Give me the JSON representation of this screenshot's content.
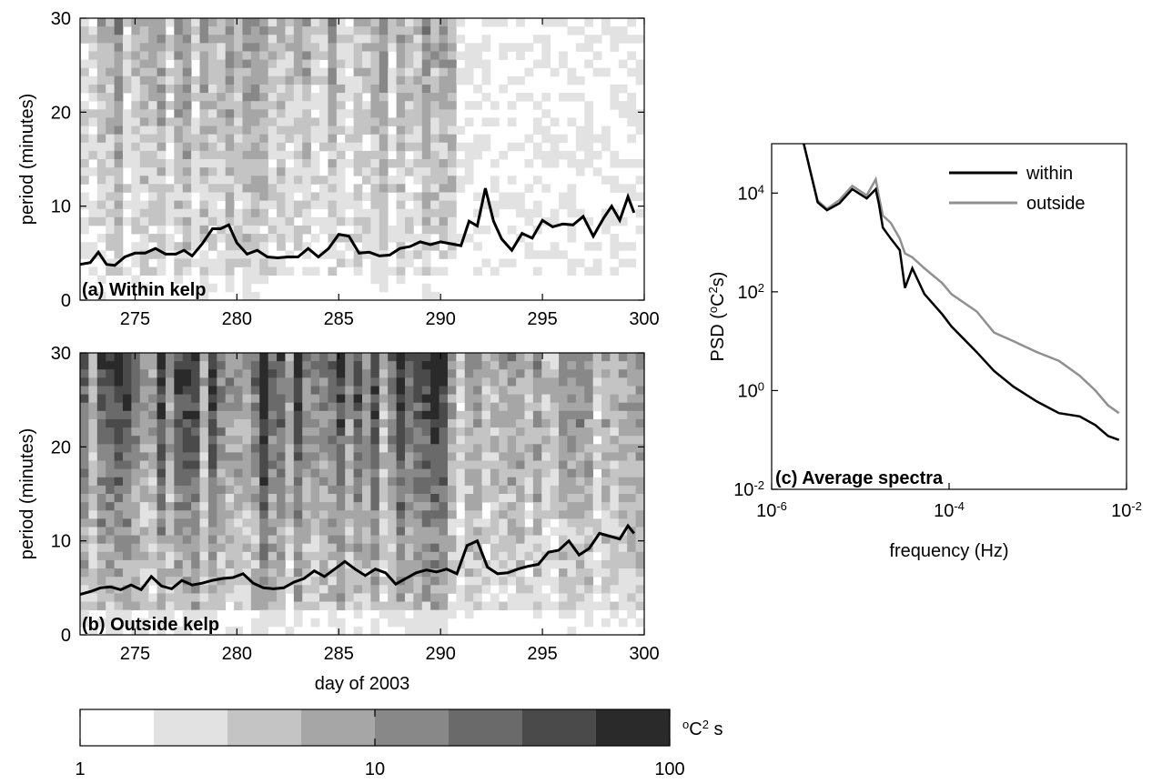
{
  "chart_data": [
    {
      "id": "a",
      "type": "heatmap",
      "panel_label": "(a) Within kelp",
      "ylabel": "period (minutes)",
      "xlim": [
        272.3,
        300
      ],
      "ylim": [
        0,
        30
      ],
      "xticks": [
        275,
        280,
        285,
        290,
        295,
        300
      ],
      "yticks": [
        0,
        10,
        20,
        30
      ],
      "color_scale": "log",
      "color_range": [
        1,
        100
      ],
      "line": {
        "x": [
          272.3,
          272.8,
          273.2,
          273.6,
          274.0,
          274.5,
          275.0,
          275.5,
          276.0,
          276.5,
          277.0,
          277.4,
          277.8,
          278.3,
          278.8,
          279.2,
          279.6,
          280.0,
          280.5,
          281.0,
          281.5,
          282.0,
          282.5,
          283.0,
          283.5,
          284.0,
          284.5,
          285.0,
          285.5,
          286.0,
          286.5,
          287.0,
          287.5,
          288.0,
          288.5,
          289.0,
          289.5,
          290.0,
          290.5,
          291.0,
          291.4,
          291.8,
          292.2,
          292.6,
          293.0,
          293.5,
          294.0,
          294.5,
          295.0,
          295.5,
          296.0,
          296.5,
          297.0,
          297.5,
          298.0,
          298.4,
          298.8,
          299.2,
          299.5
        ],
        "y": [
          3.8,
          4.0,
          5.1,
          3.8,
          3.7,
          4.6,
          5.0,
          5.0,
          5.5,
          4.9,
          4.9,
          5.3,
          4.7,
          6.0,
          7.6,
          7.6,
          8.0,
          6.1,
          4.9,
          5.3,
          4.6,
          4.5,
          4.6,
          4.6,
          5.5,
          4.6,
          5.5,
          7.0,
          6.8,
          5.0,
          5.1,
          4.7,
          4.8,
          5.5,
          5.7,
          6.2,
          5.9,
          6.2,
          6.0,
          5.8,
          8.4,
          7.9,
          11.9,
          8.4,
          6.5,
          5.3,
          7.1,
          6.6,
          8.5,
          7.8,
          8.1,
          8.0,
          8.9,
          6.8,
          8.7,
          10.0,
          8.5,
          11.0,
          9.3
        ]
      }
    },
    {
      "id": "b",
      "type": "heatmap",
      "panel_label": "(b) Outside kelp",
      "xlabel": "day of 2003",
      "ylabel": "period (minutes)",
      "xlim": [
        272.3,
        300
      ],
      "ylim": [
        0,
        30
      ],
      "xticks": [
        275,
        280,
        285,
        290,
        295,
        300
      ],
      "yticks": [
        0,
        10,
        20,
        30
      ],
      "color_scale": "log",
      "color_range": [
        1,
        100
      ],
      "line": {
        "x": [
          272.3,
          272.8,
          273.3,
          273.8,
          274.3,
          274.8,
          275.3,
          275.8,
          276.3,
          276.8,
          277.3,
          277.8,
          278.3,
          278.8,
          279.3,
          279.8,
          280.3,
          280.8,
          281.3,
          281.8,
          282.3,
          282.8,
          283.3,
          283.8,
          284.3,
          284.8,
          285.3,
          285.8,
          286.3,
          286.8,
          287.3,
          287.8,
          288.3,
          288.8,
          289.3,
          289.8,
          290.3,
          290.8,
          291.3,
          291.8,
          292.3,
          292.8,
          293.3,
          293.8,
          294.3,
          294.8,
          295.3,
          295.8,
          296.3,
          296.8,
          297.3,
          297.8,
          298.3,
          298.8,
          299.2,
          299.5
        ],
        "y": [
          4.3,
          4.6,
          5.0,
          5.1,
          4.8,
          5.3,
          4.8,
          6.2,
          5.2,
          4.9,
          5.8,
          5.3,
          5.5,
          5.8,
          6.0,
          6.1,
          6.5,
          5.5,
          5.0,
          4.9,
          5.0,
          5.6,
          6.0,
          6.8,
          6.2,
          7.0,
          7.8,
          7.0,
          6.3,
          7.0,
          6.6,
          5.4,
          6.0,
          6.6,
          6.9,
          6.7,
          7.0,
          6.5,
          9.5,
          10.0,
          7.2,
          6.5,
          6.6,
          7.0,
          7.3,
          7.5,
          8.8,
          9.0,
          10.0,
          8.5,
          9.2,
          10.8,
          10.5,
          10.2,
          11.6,
          10.8
        ]
      }
    },
    {
      "id": "c",
      "type": "line",
      "panel_label": "(c) Average spectra",
      "xlabel": "frequency (Hz)",
      "ylabel": "PSD (oC2s)",
      "x_scale": "log",
      "y_scale": "log",
      "xlim": [
        1e-06,
        0.01
      ],
      "ylim": [
        0.01,
        100000
      ],
      "xticks": [
        1e-06,
        0.0001,
        0.01
      ],
      "yticks": [
        0.01,
        1,
        100,
        10000
      ],
      "legend_position": "top-right",
      "series": [
        {
          "name": "within",
          "color": "#000000",
          "x": [
            2.3e-06,
            3.3e-06,
            4.2e-06,
            5.8e-06,
            8.1e-06,
            1.18e-05,
            1.49e-05,
            1.62e-05,
            1.79e-05,
            2.2e-05,
            2.78e-05,
            3.18e-05,
            3.85e-05,
            5.27e-05,
            8.37e-05,
            0.000106,
            0.000205,
            0.000321,
            0.000531,
            0.000979,
            0.00173,
            0.00296,
            0.00446,
            0.00621,
            0.00822
          ],
          "y": [
            120000,
            6500,
            4500,
            6200,
            12000,
            7800,
            12000,
            6000,
            2000,
            1200,
            700,
            120,
            300,
            90,
            35,
            20,
            6,
            2.5,
            1.2,
            0.6,
            0.35,
            0.3,
            0.2,
            0.12,
            0.1
          ]
        },
        {
          "name": "outside",
          "color": "#909090",
          "x": [
            2.3e-06,
            3.3e-06,
            4.2e-06,
            5.8e-06,
            8.1e-06,
            1.18e-05,
            1.49e-05,
            1.62e-05,
            1.79e-05,
            2.2e-05,
            2.78e-05,
            3.18e-05,
            3.85e-05,
            5.27e-05,
            8.37e-05,
            0.000106,
            0.000205,
            0.000321,
            0.000531,
            0.000979,
            0.00173,
            0.00296,
            0.00446,
            0.00621,
            0.00822
          ],
          "y": [
            120000,
            7000,
            4800,
            7200,
            14000,
            9000,
            19000,
            8500,
            3500,
            2500,
            1200,
            600,
            500,
            300,
            150,
            90,
            40,
            15,
            10,
            6,
            4,
            2,
            1,
            0.5,
            0.35
          ]
        }
      ]
    },
    {
      "id": "colorbar",
      "type": "colorbar",
      "unit_label": "oC2 s",
      "scale": "log",
      "range": [
        1,
        100
      ],
      "tick_labels": [
        "1",
        "10",
        "100"
      ],
      "levels": [
        "#ffffff",
        "#e2e2e2",
        "#c4c4c4",
        "#a6a6a6",
        "#888888",
        "#6a6a6a",
        "#4a4a4a",
        "#2a2a2a"
      ]
    }
  ]
}
